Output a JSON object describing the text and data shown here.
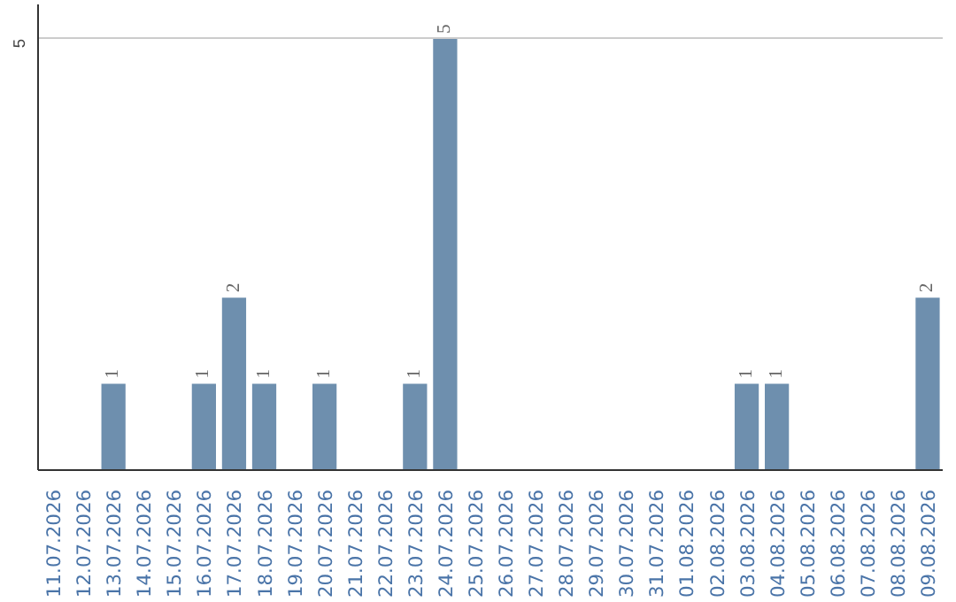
{
  "chart_data": {
    "type": "bar",
    "categories": [
      "11.07.2026",
      "12.07.2026",
      "13.07.2026",
      "14.07.2026",
      "15.07.2026",
      "16.07.2026",
      "17.07.2026",
      "18.07.2026",
      "19.07.2026",
      "20.07.2026",
      "21.07.2026",
      "22.07.2026",
      "23.07.2026",
      "24.07.2026",
      "25.07.2026",
      "26.07.2026",
      "27.07.2026",
      "28.07.2026",
      "29.07.2026",
      "30.07.2026",
      "31.07.2026",
      "01.08.2026",
      "02.08.2026",
      "03.08.2026",
      "04.08.2026",
      "05.08.2026",
      "06.08.2026",
      "07.08.2026",
      "08.08.2026",
      "09.08.2026"
    ],
    "values": [
      0,
      0,
      1,
      0,
      0,
      1,
      2,
      1,
      0,
      1,
      0,
      0,
      1,
      5,
      0,
      0,
      0,
      0,
      0,
      0,
      0,
      0,
      0,
      1,
      1,
      0,
      0,
      0,
      0,
      2
    ],
    "value_labels": [
      null,
      null,
      "1",
      null,
      null,
      "1",
      "2",
      "1",
      null,
      "1",
      null,
      null,
      "1",
      "5",
      null,
      null,
      null,
      null,
      null,
      null,
      null,
      null,
      null,
      "1",
      "1",
      null,
      null,
      null,
      null,
      "2"
    ],
    "color": "#6e8fae",
    "ylim": [
      0,
      5.4
    ],
    "yticks": [
      5
    ],
    "grid": "y"
  }
}
